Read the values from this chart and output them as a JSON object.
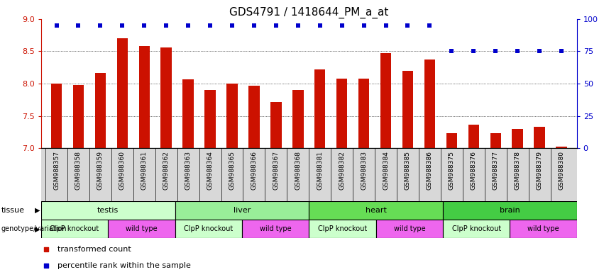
{
  "title": "GDS4791 / 1418644_PM_a_at",
  "samples": [
    "GSM988357",
    "GSM988358",
    "GSM988359",
    "GSM988360",
    "GSM988361",
    "GSM988362",
    "GSM988363",
    "GSM988364",
    "GSM988365",
    "GSM988366",
    "GSM988367",
    "GSM988368",
    "GSM988381",
    "GSM988382",
    "GSM988383",
    "GSM988384",
    "GSM988385",
    "GSM988386",
    "GSM988375",
    "GSM988376",
    "GSM988377",
    "GSM988378",
    "GSM988379",
    "GSM988380"
  ],
  "bar_values": [
    8.0,
    7.98,
    8.17,
    8.7,
    8.58,
    8.56,
    8.07,
    7.9,
    8.0,
    7.97,
    7.72,
    7.9,
    8.22,
    8.08,
    8.08,
    8.47,
    8.2,
    8.37,
    7.23,
    7.36,
    7.23,
    7.3,
    7.33,
    7.02
  ],
  "percentile_values": [
    95,
    95,
    95,
    95,
    95,
    95,
    95,
    95,
    95,
    95,
    95,
    95,
    95,
    95,
    95,
    95,
    95,
    95,
    75,
    75,
    75,
    75,
    75,
    75
  ],
  "bar_color": "#cc1100",
  "percentile_color": "#0000cc",
  "ylim_left": [
    7.0,
    9.0
  ],
  "yticks_left": [
    7.0,
    7.5,
    8.0,
    8.5,
    9.0
  ],
  "ylim_right": [
    0,
    100
  ],
  "yticks_right": [
    0,
    25,
    50,
    75,
    100
  ],
  "tissue_groups": [
    {
      "label": "testis",
      "start": 0,
      "end": 5,
      "color": "#ccffcc"
    },
    {
      "label": "liver",
      "start": 6,
      "end": 11,
      "color": "#99ee99"
    },
    {
      "label": "heart",
      "start": 12,
      "end": 17,
      "color": "#66dd55"
    },
    {
      "label": "brain",
      "start": 18,
      "end": 23,
      "color": "#44cc44"
    }
  ],
  "genotype_groups": [
    {
      "label": "ClpP knockout",
      "start": 0,
      "end": 2,
      "color": "#ccffcc",
      "tcolor": "#000000"
    },
    {
      "label": "wild type",
      "start": 3,
      "end": 5,
      "color": "#ee66ee",
      "tcolor": "#000000"
    },
    {
      "label": "ClpP knockout",
      "start": 6,
      "end": 8,
      "color": "#ccffcc",
      "tcolor": "#000000"
    },
    {
      "label": "wild type",
      "start": 9,
      "end": 11,
      "color": "#ee66ee",
      "tcolor": "#000000"
    },
    {
      "label": "ClpP knockout",
      "start": 12,
      "end": 14,
      "color": "#ccffcc",
      "tcolor": "#000000"
    },
    {
      "label": "wild type",
      "start": 15,
      "end": 17,
      "color": "#ee66ee",
      "tcolor": "#000000"
    },
    {
      "label": "ClpP knockout",
      "start": 18,
      "end": 20,
      "color": "#ccffcc",
      "tcolor": "#000000"
    },
    {
      "label": "wild type",
      "start": 21,
      "end": 23,
      "color": "#ee66ee",
      "tcolor": "#000000"
    }
  ],
  "tissue_text_color": "#000000",
  "bar_width": 0.5,
  "tick_fontsize": 7,
  "title_fontsize": 11
}
